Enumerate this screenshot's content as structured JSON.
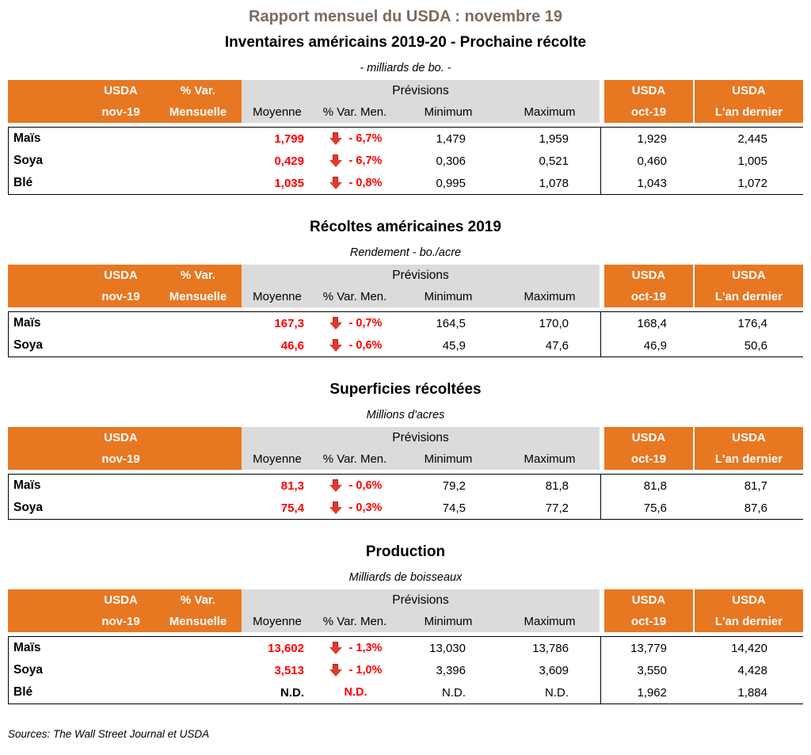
{
  "page": {
    "title": "Rapport mensuel du USDA : novembre 19",
    "source_note": "Sources: The Wall Street Journal et USDA"
  },
  "colors": {
    "header_orange": "#E87722",
    "header_gray": "#DBDBDB",
    "value_red": "#FF0000",
    "arrow_red": "#E03A2F",
    "title_brown": "#7C6A60"
  },
  "icons": {
    "down_arrow": "red-down-arrow"
  },
  "header_labels": {
    "usda": "USDA",
    "nov19": "nov-19",
    "pct_var": "% Var.",
    "mensuelle": "Mensuelle",
    "previsions": "Prévisions",
    "moyenne": "Moyenne",
    "pct_var_men": "% Var. Men.",
    "minimum": "Minimum",
    "maximum": "Maximum",
    "oct19": "oct-19",
    "lan_dernier": "L'an dernier"
  },
  "tables": [
    {
      "title": "Inventaires américains 2019-20 - Prochaine récolte",
      "unit": "- milliards de bo. -",
      "has_var_mensuelle_header": true,
      "rows": [
        {
          "label": "Maïs",
          "moyenne": "1,799",
          "var_men": "- 6,7%",
          "minimum": "1,479",
          "maximum": "1,959",
          "oct19": "1,929",
          "lan_dernier": "2,445",
          "arrow": true
        },
        {
          "label": "Soya",
          "moyenne": "0,429",
          "var_men": "- 6,7%",
          "minimum": "0,306",
          "maximum": "0,521",
          "oct19": "0,460",
          "lan_dernier": "1,005",
          "arrow": true
        },
        {
          "label": "Blé",
          "moyenne": "1,035",
          "var_men": "- 0,8%",
          "minimum": "0,995",
          "maximum": "1,078",
          "oct19": "1,043",
          "lan_dernier": "1,072",
          "arrow": true
        }
      ]
    },
    {
      "title": "Récoltes américaines 2019",
      "unit": "Rendement - bo./acre",
      "has_var_mensuelle_header": true,
      "rows": [
        {
          "label": "Maïs",
          "moyenne": "167,3",
          "var_men": "- 0,7%",
          "minimum": "164,5",
          "maximum": "170,0",
          "oct19": "168,4",
          "lan_dernier": "176,4",
          "arrow": true
        },
        {
          "label": "Soya",
          "moyenne": "46,6",
          "var_men": "- 0,6%",
          "minimum": "45,9",
          "maximum": "47,6",
          "oct19": "46,9",
          "lan_dernier": "50,6",
          "arrow": true
        }
      ]
    },
    {
      "title": "Superficies récoltées",
      "unit": "Millions d'acres",
      "has_var_mensuelle_header": false,
      "rows": [
        {
          "label": "Maïs",
          "moyenne": "81,3",
          "var_men": "- 0,6%",
          "minimum": "79,2",
          "maximum": "81,8",
          "oct19": "81,8",
          "lan_dernier": "81,7",
          "arrow": true
        },
        {
          "label": "Soya",
          "moyenne": "75,4",
          "var_men": "- 0,3%",
          "minimum": "74,5",
          "maximum": "77,2",
          "oct19": "75,6",
          "lan_dernier": "87,6",
          "arrow": true
        }
      ]
    },
    {
      "title": "Production",
      "unit": "Milliards de boisseaux",
      "has_var_mensuelle_header": true,
      "rows": [
        {
          "label": "Maïs",
          "moyenne": "13,602",
          "var_men": "- 1,3%",
          "minimum": "13,030",
          "maximum": "13,786",
          "oct19": "13,779",
          "lan_dernier": "14,420",
          "arrow": true
        },
        {
          "label": "Soya",
          "moyenne": "3,513",
          "var_men": "- 1,0%",
          "minimum": "3,396",
          "maximum": "3,609",
          "oct19": "3,550",
          "lan_dernier": "4,428",
          "arrow": true
        },
        {
          "label": "Blé",
          "moyenne": "N.D.",
          "var_men": "N.D.",
          "minimum": "N.D.",
          "maximum": "N.D.",
          "oct19": "1,962",
          "lan_dernier": "1,884",
          "arrow": false
        }
      ]
    }
  ]
}
